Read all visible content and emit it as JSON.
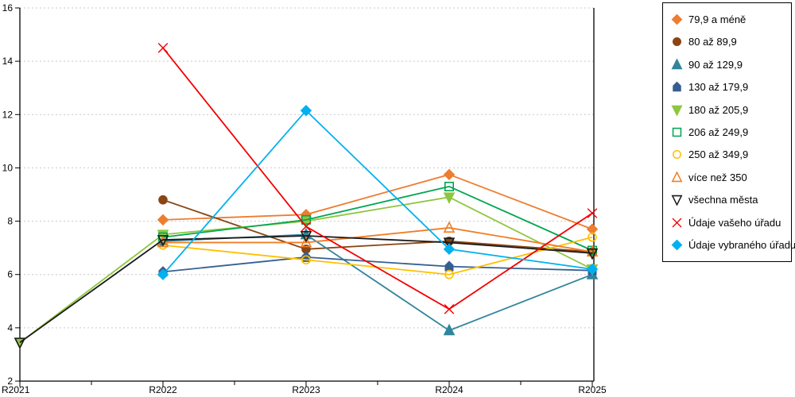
{
  "chart_data": {
    "type": "line",
    "title": "",
    "xlabel": "",
    "ylabel": "",
    "x_categories": [
      "R2021",
      "R2022",
      "R2023",
      "R2024",
      "R2025"
    ],
    "y_axis": {
      "min": 2,
      "max": 16,
      "step": 2,
      "tick_labels": [
        "2",
        "4",
        "6",
        "8",
        "10",
        "12",
        "14",
        "16"
      ]
    },
    "grid": "horizontal dashed gray",
    "legend_position": "right",
    "series": [
      {
        "name": "79,9 a méně",
        "color": "#ED7D31",
        "marker": "diamond",
        "filled": true,
        "values": [
          null,
          8.05,
          8.25,
          9.75,
          7.7
        ]
      },
      {
        "name": "80 až 89,9",
        "color": "#8B4513",
        "marker": "circle",
        "filled": true,
        "values": [
          null,
          8.8,
          6.95,
          7.25,
          6.85
        ]
      },
      {
        "name": "90 až 129,9",
        "color": "#31859C",
        "marker": "triangle-up",
        "filled": true,
        "values": [
          null,
          7.25,
          7.5,
          3.9,
          6.0
        ]
      },
      {
        "name": "130 až 179,9",
        "color": "#365F91",
        "marker": "pentagon",
        "filled": true,
        "values": [
          null,
          6.1,
          6.65,
          6.3,
          6.15
        ]
      },
      {
        "name": "180 až 205,9",
        "color": "#8EC63F",
        "marker": "triangle-down",
        "filled": true,
        "values": [
          3.45,
          7.5,
          8.0,
          8.9,
          6.2
        ]
      },
      {
        "name": "206 až 249,9",
        "color": "#00A650",
        "marker": "square",
        "filled": false,
        "values": [
          null,
          7.4,
          8.05,
          9.3,
          6.9
        ]
      },
      {
        "name": "250 až 349,9",
        "color": "#FFC000",
        "marker": "circle",
        "filled": false,
        "values": [
          null,
          7.1,
          6.55,
          6.0,
          7.4
        ]
      },
      {
        "name": "více než 350",
        "color": "#F07E26",
        "marker": "triangle-up",
        "filled": false,
        "values": [
          null,
          7.2,
          7.2,
          7.75,
          6.85
        ]
      },
      {
        "name": "všechna města",
        "color": "#1A1A1A",
        "marker": "triangle-down",
        "filled": false,
        "values": [
          3.45,
          7.3,
          7.45,
          7.2,
          6.8
        ]
      },
      {
        "name": "Údaje vašeho úřadu",
        "color": "#F40000",
        "marker": "x",
        "filled": false,
        "values": [
          null,
          14.5,
          7.8,
          4.7,
          8.3
        ]
      },
      {
        "name": "Údaje vybraného úřadu",
        "color": "#00B0F0",
        "marker": "diamond",
        "filled": true,
        "values": [
          null,
          6.0,
          12.15,
          6.95,
          6.2
        ]
      }
    ],
    "colors": {
      "axis": "#000000",
      "gridline": "#C8C8C8",
      "background": "#FFFFFF"
    }
  }
}
